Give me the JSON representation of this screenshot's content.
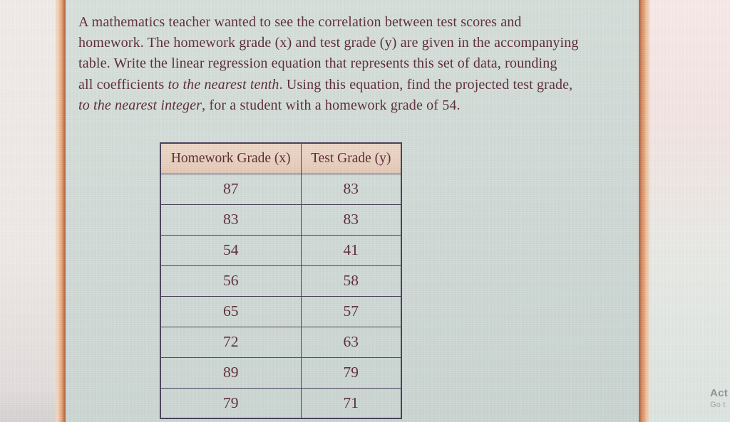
{
  "problem": {
    "lines": [
      {
        "segments": [
          {
            "text": "A mathematics teacher wanted to see the correlation between test scores and",
            "italic": false
          }
        ]
      },
      {
        "segments": [
          {
            "text": "homework. The homework grade (x) and test grade (y) are given in the accompanying",
            "italic": false
          }
        ]
      },
      {
        "segments": [
          {
            "text": "table. Write the linear regression equation that represents this set of data, rounding",
            "italic": false
          }
        ]
      },
      {
        "segments": [
          {
            "text": "all coefficients ",
            "italic": false
          },
          {
            "text": "to the nearest tenth",
            "italic": true
          },
          {
            "text": ". Using this equation, find the projected test grade,",
            "italic": false
          }
        ]
      },
      {
        "segments": [
          {
            "text": "to the nearest integer",
            "italic": true
          },
          {
            "text": ", for a student with a homework grade of 54.",
            "italic": false
          }
        ]
      }
    ]
  },
  "table": {
    "headers": [
      "Homework Grade (x)",
      "Test Grade (y)"
    ],
    "rows": [
      [
        "87",
        "83"
      ],
      [
        "83",
        "83"
      ],
      [
        "54",
        "41"
      ],
      [
        "56",
        "58"
      ],
      [
        "65",
        "57"
      ],
      [
        "72",
        "63"
      ],
      [
        "89",
        "79"
      ],
      [
        "79",
        "71"
      ]
    ]
  },
  "watermark": {
    "line1": "Act",
    "line2": "Go t"
  },
  "colors": {
    "ink": "#5b2a37",
    "table-border": "#484059",
    "header-bg": "#e9d1c0",
    "page-bg1": "#d8e1dc",
    "page-bg2": "#c9d4d0",
    "left-margin-bg": "#f1ecea",
    "edge-light": "#f0c7a6",
    "edge-dark": "#b05c39",
    "right-margin-top": "#f8eae8",
    "right-margin-bottom": "#dde5e1",
    "watermark-ink": "#8b9697"
  }
}
